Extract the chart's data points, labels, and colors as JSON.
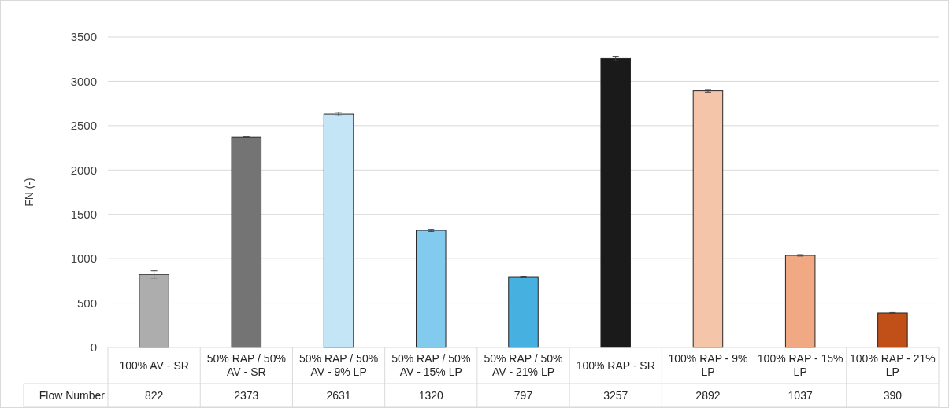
{
  "chart_data": {
    "type": "bar",
    "ylabel": "FN (-)",
    "categories": [
      "100% AV - SR",
      "50% RAP / 50% AV - SR",
      "50% RAP / 50% AV - 9% LP",
      "50% RAP / 50% AV - 15% LP",
      "50% RAP / 50% AV - 21% LP",
      "100% RAP - SR",
      "100% RAP - 9% LP",
      "100% RAP - 15% LP",
      "100% RAP - 21% LP"
    ],
    "series": [
      {
        "name": "Flow Number",
        "values": [
          822,
          2373,
          2631,
          1320,
          797,
          3257,
          2892,
          1037,
          390
        ],
        "colors": [
          "#adadad",
          "#747474",
          "#c3e5f6",
          "#82cbee",
          "#46b0e1",
          "#1a1a1a",
          "#f5c5aa",
          "#f1a984",
          "#c05018"
        ],
        "errors": [
          40,
          5,
          20,
          12,
          5,
          25,
          15,
          8,
          5
        ]
      }
    ],
    "ylim": [
      0,
      3500
    ],
    "yticks": [
      0,
      500,
      1000,
      1500,
      2000,
      2500,
      3000,
      3500
    ],
    "grid": "y",
    "data_labels": true
  }
}
